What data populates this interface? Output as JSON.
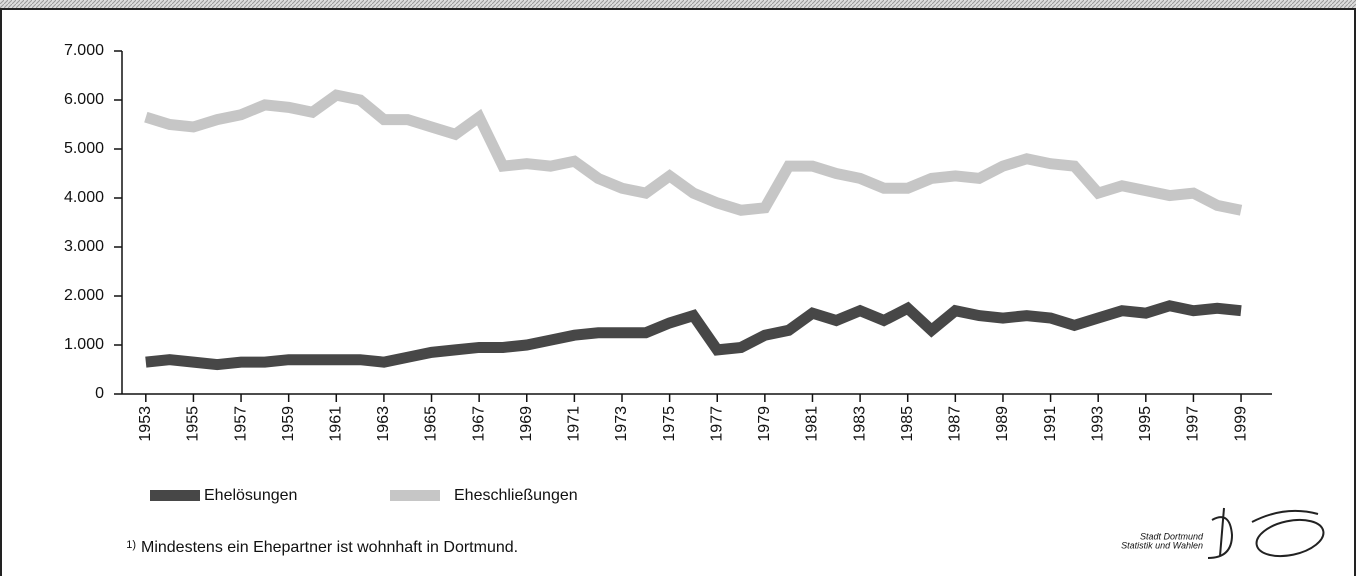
{
  "chart_data": {
    "type": "line",
    "x": [
      1953,
      1954,
      1955,
      1956,
      1957,
      1958,
      1959,
      1960,
      1961,
      1962,
      1963,
      1964,
      1965,
      1966,
      1967,
      1968,
      1969,
      1970,
      1971,
      1972,
      1973,
      1974,
      1975,
      1976,
      1977,
      1978,
      1979,
      1980,
      1981,
      1982,
      1983,
      1984,
      1985,
      1986,
      1987,
      1988,
      1989,
      1990,
      1991,
      1992,
      1993,
      1994,
      1995,
      1996,
      1997,
      1998,
      1999
    ],
    "xlim": [
      1952,
      2000.3
    ],
    "xticks": [
      1953,
      1955,
      1957,
      1959,
      1961,
      1963,
      1965,
      1967,
      1969,
      1971,
      1973,
      1975,
      1977,
      1979,
      1981,
      1983,
      1985,
      1987,
      1989,
      1991,
      1993,
      1995,
      1997,
      1999
    ],
    "ylim": [
      0,
      7000
    ],
    "yticks": [
      0,
      {
        "value": 1000,
        "label": "1.000"
      },
      {
        "value": 2000,
        "label": "2.000"
      },
      {
        "value": 3000,
        "label": "3.000"
      },
      {
        "value": 4000,
        "label": "4.000"
      },
      {
        "value": 5000,
        "label": "5.000"
      },
      {
        "value": 6000,
        "label": "6.000"
      },
      {
        "value": 7000,
        "label": "7.000"
      }
    ],
    "series": [
      {
        "name": "Ehelösungen",
        "color": "#474747",
        "values": [
          650,
          700,
          650,
          600,
          650,
          650,
          700,
          700,
          700,
          700,
          650,
          750,
          850,
          900,
          950,
          950,
          1000,
          1100,
          1200,
          1250,
          1250,
          1250,
          1450,
          1600,
          900,
          950,
          1200,
          1300,
          1650,
          1500,
          1700,
          1500,
          1750,
          1300,
          1700,
          1600,
          1550,
          1600,
          1550,
          1400,
          1550,
          1700,
          1650,
          1800,
          1700,
          1750,
          1700
        ]
      },
      {
        "name": "Eheschließungen",
        "color": "#c6c6c6",
        "values": [
          5650,
          5500,
          5450,
          5600,
          5700,
          5900,
          5850,
          5750,
          6100,
          6000,
          5600,
          5600,
          5450,
          5300,
          5650,
          4650,
          4700,
          4650,
          4750,
          4400,
          4200,
          4100,
          4450,
          4100,
          3900,
          3750,
          3800,
          4650,
          4650,
          4500,
          4400,
          4200,
          4200,
          4400,
          4450,
          4400,
          4650,
          4800,
          4700,
          4650,
          4100,
          4250,
          4150,
          4050,
          4100,
          3850,
          3750
        ]
      }
    ],
    "footnote_marker": "1)",
    "footnote": "Mindestens ein Ehepartner ist wohnhaft in Dortmund.",
    "source": [
      "Stadt Dortmund",
      "Statistik und Wahlen"
    ]
  }
}
